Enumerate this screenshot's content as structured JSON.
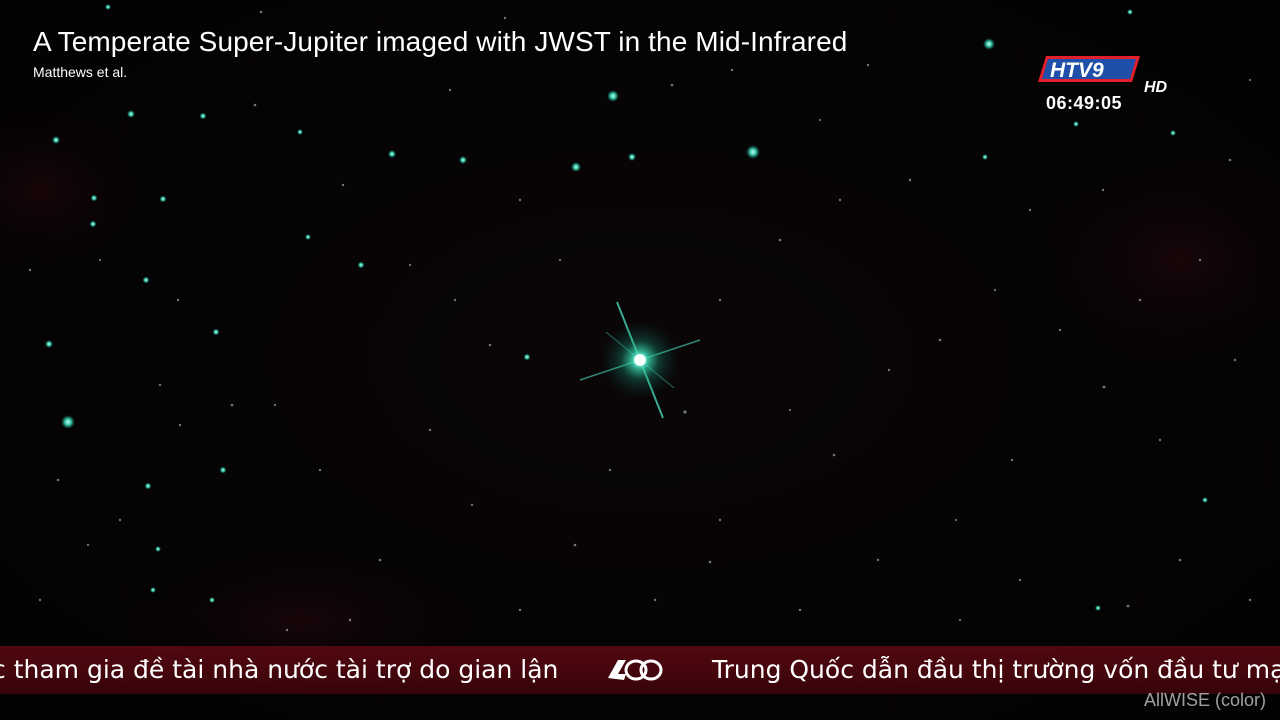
{
  "overlay": {
    "title": "A Temperate Super-Jupiter imaged with JWST in the Mid-Infrared",
    "credit": "Matthews et al.",
    "source_label": "AllWISE (color)"
  },
  "channel": {
    "logo_text": "HTV9",
    "logo_suffix": "HD",
    "clock": "06:49:05"
  },
  "ticker": {
    "left_text": "c tham gia đề tài nhà nước tài trợ do gian lận",
    "right_text": "Trung Quốc dẫn đầu thị trường vốn đầu tư mạo"
  },
  "colors": {
    "star_cyan": "#3fe8c4",
    "ticker_red": "#8c0c18",
    "logo_red": "#e31e2d",
    "logo_blue": "#1f4fa8"
  },
  "icons": {
    "separator": "anniversary-badge-icon"
  }
}
